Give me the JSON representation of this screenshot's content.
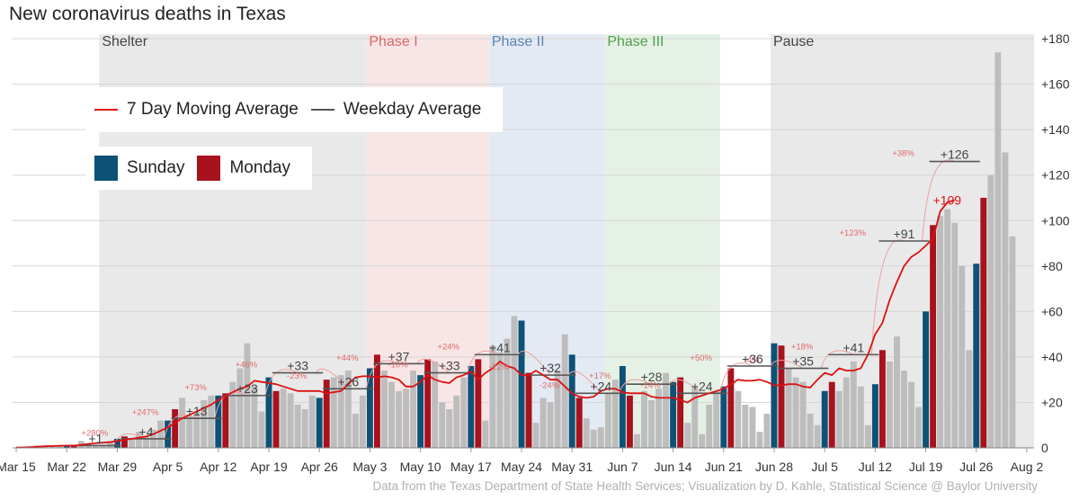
{
  "chart_data": {
    "type": "bar",
    "title": "New coronavirus deaths in Texas",
    "caption": "Data from the Texas Department of State Health Services; Visualization by D. Kahle, Statistical Science @ Baylor University",
    "x_start": "Mar 15",
    "x_range_days": [
      -0.5,
      141
    ],
    "x_tick_labels": [
      "Mar 15",
      "Mar 22",
      "Mar 29",
      "Apr 5",
      "Apr 12",
      "Apr 19",
      "Apr 26",
      "May 3",
      "May 10",
      "May 17",
      "May 24",
      "May 31",
      "Jun 7",
      "Jun 14",
      "Jun 21",
      "Jun 28",
      "Jul 5",
      "Jul 12",
      "Jul 19",
      "Jul 26",
      "Aug 2"
    ],
    "y_range": [
      0,
      182
    ],
    "y_ticks": [
      0,
      20,
      40,
      60,
      80,
      100,
      120,
      140,
      160,
      180
    ],
    "y_tick_labels": [
      "0",
      "+20",
      "+40",
      "+60",
      "+80",
      "+100",
      "+120",
      "+140",
      "+160",
      "+180"
    ],
    "phases": [
      {
        "label": "Shelter",
        "start_day": 11.5,
        "end_day": 48.5,
        "color": "#e9e9e9",
        "label_color": "#444444"
      },
      {
        "label": "Phase I",
        "start_day": 48.5,
        "end_day": 65.5,
        "color": "#f8e6e6",
        "label_color": "#d76a6a"
      },
      {
        "label": "Phase II",
        "start_day": 65.5,
        "end_day": 81.5,
        "color": "#e4eaf3",
        "label_color": "#5b84b1"
      },
      {
        "label": "Phase III",
        "start_day": 81.5,
        "end_day": 97.5,
        "color": "#e4f1e4",
        "label_color": "#4fa14f"
      },
      {
        "label": "Pause",
        "start_day": 104.5,
        "end_day": 141,
        "color": "#e9e9e9",
        "label_color": "#444444"
      }
    ],
    "daily_deaths": [
      0,
      0,
      0,
      1,
      1,
      1,
      1,
      1,
      1,
      3,
      2,
      1,
      1,
      3,
      4,
      5,
      4,
      7,
      5,
      8,
      12,
      12,
      17,
      22,
      14,
      16,
      21,
      23,
      23,
      24,
      29,
      35,
      46,
      27,
      16,
      31,
      25,
      26,
      24,
      19,
      17,
      23,
      22,
      30,
      31,
      32,
      34,
      15,
      23,
      35,
      41,
      34,
      29,
      25,
      26,
      34,
      32,
      39,
      38,
      20,
      17,
      23,
      31,
      36,
      39,
      12,
      45,
      42,
      48,
      58,
      56,
      33,
      11,
      22,
      20,
      34,
      50,
      41,
      22,
      13,
      8,
      9,
      24,
      30,
      36,
      23,
      6,
      25,
      21,
      26,
      33,
      29,
      31,
      11,
      27,
      6,
      19,
      25,
      27,
      35,
      25,
      19,
      18,
      7,
      15,
      46,
      45,
      35,
      31,
      29,
      15,
      10,
      25,
      29,
      25,
      31,
      38,
      27,
      10,
      28,
      43,
      38,
      49,
      34,
      29,
      18,
      60,
      98,
      102,
      105,
      99,
      80,
      43,
      81,
      110,
      120,
      174,
      130,
      93
    ],
    "series": [
      {
        "name": "7 Day Moving Average",
        "color": "#dd1111",
        "values": [
          0.1,
          0.2,
          0.3,
          0.5,
          0.7,
          0.8,
          0.9,
          1,
          1,
          1.3,
          1.7,
          2,
          2.3,
          2.5,
          3,
          3.5,
          4,
          4.5,
          5,
          6,
          7.5,
          9,
          11,
          13,
          14.5,
          16,
          17.5,
          19,
          21,
          23,
          24.5,
          26,
          27,
          29.5,
          29,
          28.5,
          28,
          27,
          26,
          25,
          25,
          25,
          25,
          24,
          24.5,
          25,
          28,
          31,
          31.5,
          31.5,
          31,
          31.5,
          31,
          30,
          27,
          27,
          29,
          32,
          30,
          29,
          28.5,
          31,
          32,
          33.5,
          30,
          33,
          35,
          38,
          36,
          35,
          32,
          32,
          34,
          32,
          30,
          30,
          27,
          24,
          22.5,
          22,
          22.5,
          25,
          26,
          26,
          24.5,
          24,
          24,
          24,
          22.5,
          22,
          22,
          22,
          21,
          20,
          22,
          23,
          24,
          25,
          26,
          28,
          30,
          29.5,
          29.5,
          30,
          29,
          27.5,
          27.5,
          28,
          28,
          27,
          26.5,
          30,
          33,
          32,
          35,
          34,
          34,
          35,
          41,
          50,
          55,
          65,
          73,
          80,
          84,
          86,
          89,
          92,
          104,
          108,
          109
        ]
      },
      {
        "name": "Weekday Average",
        "color": "#555555",
        "segments": [
          {
            "start_day": 7.5,
            "end_day": 14.5,
            "value": 1,
            "label": "+1"
          },
          {
            "start_day": 14.5,
            "end_day": 21.5,
            "value": 4,
            "label": "+4"
          },
          {
            "start_day": 21.5,
            "end_day": 28.5,
            "value": 13,
            "label": "+13"
          },
          {
            "start_day": 28.5,
            "end_day": 35.5,
            "value": 23,
            "label": "+23"
          },
          {
            "start_day": 35.5,
            "end_day": 42.5,
            "value": 33,
            "label": "+33"
          },
          {
            "start_day": 42.5,
            "end_day": 49.5,
            "value": 26,
            "label": "+26"
          },
          {
            "start_day": 49.5,
            "end_day": 56.5,
            "value": 37,
            "label": "+37"
          },
          {
            "start_day": 56.5,
            "end_day": 63.5,
            "value": 33,
            "label": "+33"
          },
          {
            "start_day": 63.5,
            "end_day": 70.5,
            "value": 41,
            "label": "+41"
          },
          {
            "start_day": 70.5,
            "end_day": 77.5,
            "value": 32,
            "label": "+32"
          },
          {
            "start_day": 77.5,
            "end_day": 84.5,
            "value": 24,
            "label": "+24"
          },
          {
            "start_day": 84.5,
            "end_day": 91.5,
            "value": 28,
            "label": "+28"
          },
          {
            "start_day": 91.5,
            "end_day": 98.5,
            "value": 24,
            "label": "+24"
          },
          {
            "start_day": 98.5,
            "end_day": 105.5,
            "value": 36,
            "label": "+36"
          },
          {
            "start_day": 105.5,
            "end_day": 112.5,
            "value": 35,
            "label": "+35"
          },
          {
            "start_day": 112.5,
            "end_day": 119.5,
            "value": 41,
            "label": "+41"
          },
          {
            "start_day": 119.5,
            "end_day": 126.5,
            "value": 91,
            "label": "+91"
          },
          {
            "start_day": 126.5,
            "end_day": 133.5,
            "value": 126,
            "label": "+126"
          }
        ]
      }
    ],
    "pct_annotations": [
      {
        "day": 11,
        "value": 3,
        "label": "+280%"
      },
      {
        "day": 18,
        "value": 12,
        "label": "+247%"
      },
      {
        "day": 25,
        "value": 23,
        "label": "+73%"
      },
      {
        "day": 32,
        "value": 33,
        "label": "+46%"
      },
      {
        "day": 39,
        "value": 28,
        "label": "-23%"
      },
      {
        "day": 46,
        "value": 36,
        "label": "+44%"
      },
      {
        "day": 53,
        "value": 33,
        "label": "-10%"
      },
      {
        "day": 60,
        "value": 41,
        "label": "+24%"
      },
      {
        "day": 67,
        "value": 32,
        "label": "-22%"
      },
      {
        "day": 74,
        "value": 24,
        "label": "-24%"
      },
      {
        "day": 81,
        "value": 28,
        "label": "+17%"
      },
      {
        "day": 88,
        "value": 24,
        "label": "-14%"
      },
      {
        "day": 95,
        "value": 36,
        "label": "+50%"
      },
      {
        "day": 102,
        "value": 35,
        "label": "-4%"
      },
      {
        "day": 109,
        "value": 41,
        "label": "+18%"
      },
      {
        "day": 116,
        "value": 91,
        "label": "+123%"
      },
      {
        "day": 123,
        "value": 126,
        "label": "+38%"
      }
    ],
    "end_label": {
      "day": 126,
      "value": 109,
      "label": "+109"
    },
    "legend": [
      {
        "name": "7 Day Moving Average",
        "color": "#dd1111",
        "kind": "line"
      },
      {
        "name": "Weekday Average",
        "color": "#555555",
        "kind": "line"
      },
      {
        "name": "Sunday",
        "color": "#0d5276",
        "kind": "fill"
      },
      {
        "name": "Monday",
        "color": "#a8121d",
        "kind": "fill"
      }
    ],
    "bar_colors": {
      "default": "#bdbdbd",
      "sunday": "#0d5276",
      "monday": "#a8121d"
    }
  }
}
